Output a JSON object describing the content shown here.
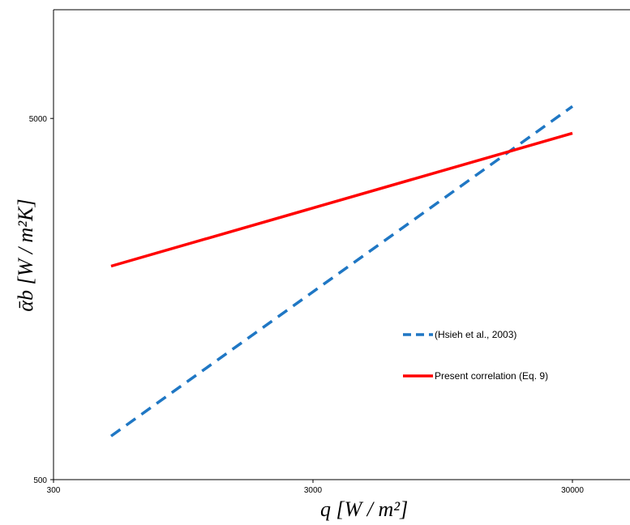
{
  "chart_data": {
    "type": "line",
    "xscale": "log",
    "yscale": "log",
    "xlim": [
      300,
      50000
    ],
    "ylim": [
      500,
      10000
    ],
    "x_ticks": [
      300,
      3000,
      30000
    ],
    "y_ticks": [
      500,
      5000
    ],
    "x_tick_labels": [
      "300",
      "3000",
      "30000"
    ],
    "y_tick_labels": [
      "500",
      "5000"
    ],
    "xlabel": "q   [W / m²]",
    "ylabel": "ᾱb   [W / m²K]",
    "grid": false,
    "legend_position": "center-right",
    "series": [
      {
        "name": "(Hsieh et al., 2003)",
        "style": "dashed",
        "color": "#1f77c4",
        "x": [
          500,
          30000
        ],
        "y": [
          660,
          5400
        ]
      },
      {
        "name": "Present correlation (Eq. 9)",
        "style": "solid",
        "color": "#ff0000",
        "x": [
          500,
          30000
        ],
        "y": [
          1950,
          4550
        ]
      }
    ]
  }
}
